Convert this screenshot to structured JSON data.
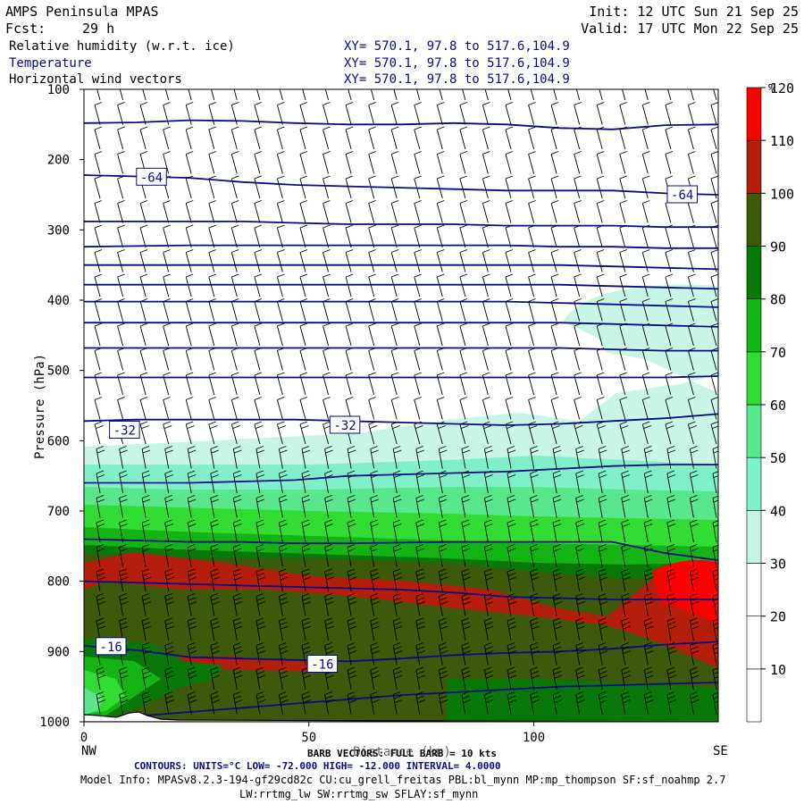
{
  "header": {
    "title": "AMPS Peninsula MPAS",
    "fcst_label": "Fcst:",
    "fcst_value": "29 h",
    "init": "Init: 12 UTC Sun 21 Sep 25",
    "valid": "Valid: 17 UTC Mon 22 Sep 25"
  },
  "fields": [
    {
      "label": "Relative humidity (w.r.t. ice)",
      "xy": "XY= 570.1, 97.8 to 517.6,104.9",
      "color": "#000000"
    },
    {
      "label": "Temperature",
      "xy": "XY= 570.1, 97.8 to 517.6,104.9",
      "color": "#0a0a8c"
    },
    {
      "label": "Horizontal wind vectors",
      "xy": "XY= 570.1, 97.8 to 517.6,104.9",
      "color": "#000000"
    }
  ],
  "footer": {
    "barb_text": "BARB VECTORS: FULL BARB = 10 kts",
    "axis_word": "Distance (km)",
    "left_end": "NW",
    "right_end": "SE",
    "contours": "CONTOURS:  UNITS=°C  LOW= -72.000      HIGH= -12.000      INTERVAL=   4.0000",
    "model_info": "Model Info: MPASv8.2.3-194-gf29cd82c CU:cu_grell_freitas PBL:bl_mynn MP:mp_thompson SF:sf_noahmp 2.7",
    "model_info2": "LW:rrtmg_lw SW:rrtmg_sw SFLAY:sf_mynn"
  },
  "colorbar": {
    "unit": "%",
    "levels": [
      10,
      20,
      30,
      40,
      50,
      60,
      70,
      80,
      90,
      100,
      110,
      120
    ],
    "colors": [
      "#ffffff",
      "#ffffff",
      "#ffffff",
      "#c8f5e6",
      "#80f0c8",
      "#5ae68c",
      "#32dc32",
      "#14b414",
      "#087808",
      "#3c5a0a",
      "#b41e0a",
      "#ff0000"
    ]
  },
  "chart_data": {
    "type": "cross-section",
    "x_axis": {
      "ticks": [
        0,
        50,
        100
      ],
      "range": [
        0,
        141
      ]
    },
    "y_axis": {
      "label": "Pressure (hPa)",
      "ticks": [
        100,
        200,
        300,
        400,
        500,
        600,
        700,
        800,
        900,
        1000
      ],
      "range": [
        100,
        1000
      ]
    },
    "temperature_contour_labels": [
      {
        "text": "-64",
        "x_km": 15,
        "p": 225
      },
      {
        "text": "-64",
        "x_km": 133,
        "p": 250
      },
      {
        "text": "-32",
        "x_km": 9,
        "p": 585
      },
      {
        "text": "-32",
        "x_km": 58,
        "p": 578
      },
      {
        "text": "-16",
        "x_km": 6,
        "p": 893
      },
      {
        "text": "-16",
        "x_km": 53,
        "p": 918
      }
    ],
    "temperature_contours": [
      {
        "p": [
          148,
          147,
          144,
          145,
          148,
          150,
          150,
          148,
          150,
          155,
          157,
          151,
          150
        ]
      },
      {
        "p": [
          222,
          224,
          226,
          232,
          236,
          238,
          240,
          242,
          244,
          244,
          244,
          248,
          250
        ]
      },
      {
        "p": [
          288,
          288,
          288,
          288,
          290,
          292,
          292,
          292,
          294,
          294,
          294,
          296,
          296
        ]
      },
      {
        "p": [
          324,
          323,
          322,
          322,
          322,
          322,
          322,
          322,
          322,
          324,
          324,
          326,
          326
        ]
      },
      {
        "p": [
          350,
          350,
          350,
          350,
          350,
          350,
          350,
          350,
          350,
          350,
          352,
          354,
          356
        ]
      },
      {
        "p": [
          378,
          378,
          378,
          378,
          378,
          378,
          378,
          378,
          378,
          378,
          380,
          382,
          384
        ]
      },
      {
        "p": [
          402,
          402,
          402,
          402,
          402,
          402,
          402,
          402,
          402,
          404,
          406,
          408,
          410
        ]
      },
      {
        "p": [
          432,
          432,
          432,
          432,
          432,
          432,
          432,
          432,
          432,
          432,
          434,
          436,
          438
        ]
      },
      {
        "p": [
          468,
          468,
          468,
          468,
          468,
          468,
          468,
          468,
          468,
          468,
          470,
          472,
          472
        ]
      },
      {
        "p": [
          510,
          510,
          510,
          510,
          510,
          510,
          510,
          510,
          510,
          510,
          510,
          510,
          508
        ]
      },
      {
        "p": [
          572,
          570,
          570,
          570,
          570,
          572,
          574,
          576,
          578,
          576,
          572,
          568,
          562
        ]
      },
      {
        "p": [
          660,
          660,
          660,
          658,
          656,
          650,
          648,
          646,
          644,
          640,
          636,
          634,
          634
        ]
      },
      {
        "p": [
          740,
          742,
          744,
          744,
          746,
          746,
          745,
          744,
          744,
          744,
          744,
          760,
          770
        ]
      },
      {
        "p": [
          800,
          802,
          804,
          806,
          808,
          810,
          812,
          816,
          822,
          824,
          826,
          826,
          826
        ]
      },
      {
        "p": [
          892,
          898,
          908,
          910,
          912,
          914,
          910,
          905,
          902,
          900,
          896,
          890,
          886
        ]
      },
      {
        "p": [
          998,
          992,
          986,
          980,
          974,
          968,
          962,
          958,
          954,
          950,
          948,
          946,
          944
        ]
      }
    ]
  }
}
